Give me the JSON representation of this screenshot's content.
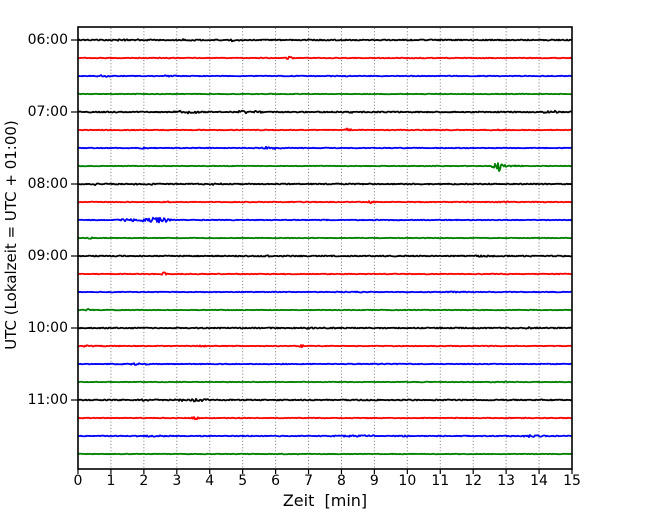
{
  "chart_data": {
    "type": "line",
    "subtype": "helicorder-dayplot",
    "title": "",
    "xlabel": "Zeit  [min]",
    "ylabel": "UTC (Lokalzeit = UTC + 01:00)",
    "xlim": [
      0,
      15
    ],
    "minutes_per_line": 15,
    "x_tick_labels": [
      "0",
      "1",
      "2",
      "3",
      "4",
      "5",
      "6",
      "7",
      "8",
      "9",
      "10",
      "11",
      "12",
      "13",
      "14",
      "15"
    ],
    "y_tick_labels": [
      "06:00",
      "07:00",
      "08:00",
      "09:00",
      "10:00",
      "11:00"
    ],
    "grid": {
      "vertical": "dotted",
      "horizontal": "none",
      "color": "#7a7a7a"
    },
    "color_cycle": [
      "#000000",
      "#ff0000",
      "#0000ff",
      "#008000"
    ],
    "axis_color": "#000000",
    "background": "#ffffff",
    "traces": [
      {
        "time": "06:00",
        "label": "06:00",
        "color": "#000000",
        "noise": 0.5,
        "events": [
          {
            "m": 4.75,
            "w": 0.12,
            "a": 1.3
          },
          {
            "m": 1.6,
            "w": 0.5,
            "a": 0.5
          },
          {
            "m": 3.2,
            "w": 0.4,
            "a": 0.5
          }
        ]
      },
      {
        "time": "06:15",
        "label": null,
        "color": "#ff0000",
        "noise": 0.35,
        "events": [
          {
            "m": 6.4,
            "w": 0.08,
            "a": 1.4
          },
          {
            "m": 10.2,
            "w": 0.2,
            "a": 0.5
          }
        ]
      },
      {
        "time": "06:30",
        "label": null,
        "color": "#0000ff",
        "noise": 0.35,
        "events": [
          {
            "m": 0.8,
            "w": 0.15,
            "a": 0.9
          },
          {
            "m": 2.8,
            "w": 0.15,
            "a": 0.8
          },
          {
            "m": 8.0,
            "w": 0.3,
            "a": 0.4
          }
        ]
      },
      {
        "time": "06:45",
        "label": null,
        "color": "#008000",
        "noise": 0.3,
        "events": [
          {
            "m": 5.5,
            "w": 0.2,
            "a": 0.4
          }
        ]
      },
      {
        "time": "07:00",
        "label": "07:00",
        "color": "#000000",
        "noise": 0.5,
        "events": [
          {
            "m": 3.3,
            "w": 0.35,
            "a": 1.4
          },
          {
            "m": 5.2,
            "w": 0.3,
            "a": 1.3
          },
          {
            "m": 14.4,
            "w": 0.3,
            "a": 1.2
          },
          {
            "m": 8.3,
            "w": 0.2,
            "a": 0.6
          }
        ]
      },
      {
        "time": "07:15",
        "label": null,
        "color": "#ff0000",
        "noise": 0.35,
        "events": [
          {
            "m": 8.2,
            "w": 0.08,
            "a": 1.3
          },
          {
            "m": 12.6,
            "w": 0.15,
            "a": 0.6
          }
        ]
      },
      {
        "time": "07:30",
        "label": null,
        "color": "#0000ff",
        "noise": 0.35,
        "events": [
          {
            "m": 5.8,
            "w": 0.25,
            "a": 1.1
          },
          {
            "m": 2.0,
            "w": 0.2,
            "a": 0.5
          }
        ]
      },
      {
        "time": "07:45",
        "label": null,
        "color": "#008000",
        "noise": 0.3,
        "events": [
          {
            "m": 12.75,
            "w": 0.12,
            "a": 4.2
          },
          {
            "m": 12.95,
            "w": 0.3,
            "a": 1.0
          }
        ]
      },
      {
        "time": "08:00",
        "label": "08:00",
        "color": "#000000",
        "noise": 0.5,
        "events": [
          {
            "m": 0.55,
            "w": 0.07,
            "a": 1.4
          },
          {
            "m": 2.0,
            "w": 0.25,
            "a": 0.8
          },
          {
            "m": 4.1,
            "w": 0.2,
            "a": 0.6
          }
        ]
      },
      {
        "time": "08:15",
        "label": null,
        "color": "#ff0000",
        "noise": 0.35,
        "events": [
          {
            "m": 2.6,
            "w": 0.15,
            "a": 0.9
          },
          {
            "m": 8.9,
            "w": 0.07,
            "a": 1.4
          },
          {
            "m": 12.9,
            "w": 0.2,
            "a": 0.6
          }
        ]
      },
      {
        "time": "08:30",
        "label": null,
        "color": "#0000ff",
        "noise": 0.35,
        "events": [
          {
            "m": 1.55,
            "w": 0.18,
            "a": 2.0
          },
          {
            "m": 2.35,
            "w": 0.3,
            "a": 3.2
          },
          {
            "m": 9.6,
            "w": 0.2,
            "a": 0.5
          }
        ]
      },
      {
        "time": "08:45",
        "label": null,
        "color": "#008000",
        "noise": 0.3,
        "events": [
          {
            "m": 0.4,
            "w": 0.08,
            "a": 0.9
          }
        ]
      },
      {
        "time": "09:00",
        "label": "09:00",
        "color": "#000000",
        "noise": 0.5,
        "events": [
          {
            "m": 12.3,
            "w": 0.2,
            "a": 0.9
          },
          {
            "m": 6.0,
            "w": 0.3,
            "a": 0.5
          }
        ]
      },
      {
        "time": "09:15",
        "label": null,
        "color": "#ff0000",
        "noise": 0.35,
        "events": [
          {
            "m": 2.6,
            "w": 0.07,
            "a": 1.8
          }
        ]
      },
      {
        "time": "09:30",
        "label": null,
        "color": "#0000ff",
        "noise": 0.35,
        "events": [
          {
            "m": 8.5,
            "w": 0.4,
            "a": 0.5
          },
          {
            "m": 11.5,
            "w": 0.3,
            "a": 0.5
          }
        ]
      },
      {
        "time": "09:45",
        "label": null,
        "color": "#008000",
        "noise": 0.3,
        "events": [
          {
            "m": 0.3,
            "w": 0.08,
            "a": 0.9
          }
        ]
      },
      {
        "time": "10:00",
        "label": "10:00",
        "color": "#000000",
        "noise": 0.5,
        "events": [
          {
            "m": 7.0,
            "w": 0.5,
            "a": 0.5
          },
          {
            "m": 13.8,
            "w": 0.3,
            "a": 0.6
          }
        ]
      },
      {
        "time": "10:15",
        "label": null,
        "color": "#ff0000",
        "noise": 0.35,
        "events": [
          {
            "m": 3.8,
            "w": 0.08,
            "a": 1.2
          },
          {
            "m": 6.8,
            "w": 0.08,
            "a": 1.2
          },
          {
            "m": 0.3,
            "w": 0.15,
            "a": 0.8
          }
        ]
      },
      {
        "time": "10:30",
        "label": null,
        "color": "#0000ff",
        "noise": 0.35,
        "events": [
          {
            "m": 1.7,
            "w": 0.35,
            "a": 0.8
          },
          {
            "m": 9.0,
            "w": 0.3,
            "a": 0.5
          }
        ]
      },
      {
        "time": "10:45",
        "label": null,
        "color": "#008000",
        "noise": 0.3,
        "events": [
          {
            "m": 12.8,
            "w": 0.25,
            "a": 0.5
          }
        ]
      },
      {
        "time": "11:00",
        "label": "11:00",
        "color": "#000000",
        "noise": 0.5,
        "events": [
          {
            "m": 3.5,
            "w": 0.3,
            "a": 1.4
          },
          {
            "m": 2.0,
            "w": 0.3,
            "a": 0.6
          },
          {
            "m": 13.9,
            "w": 0.2,
            "a": 0.6
          }
        ]
      },
      {
        "time": "11:15",
        "label": null,
        "color": "#ff0000",
        "noise": 0.35,
        "events": [
          {
            "m": 3.55,
            "w": 0.07,
            "a": 1.7
          }
        ]
      },
      {
        "time": "11:30",
        "label": null,
        "color": "#0000ff",
        "noise": 0.4,
        "events": [
          {
            "m": 2.2,
            "w": 0.35,
            "a": 0.8
          },
          {
            "m": 8.5,
            "w": 0.5,
            "a": 0.7
          },
          {
            "m": 13.8,
            "w": 0.25,
            "a": 1.0
          },
          {
            "m": 9.9,
            "w": 0.15,
            "a": 0.8
          }
        ]
      },
      {
        "time": "11:45",
        "label": null,
        "color": "#008000",
        "noise": 0.3,
        "events": [
          {
            "m": 6.5,
            "w": 0.3,
            "a": 0.4
          }
        ]
      }
    ]
  }
}
